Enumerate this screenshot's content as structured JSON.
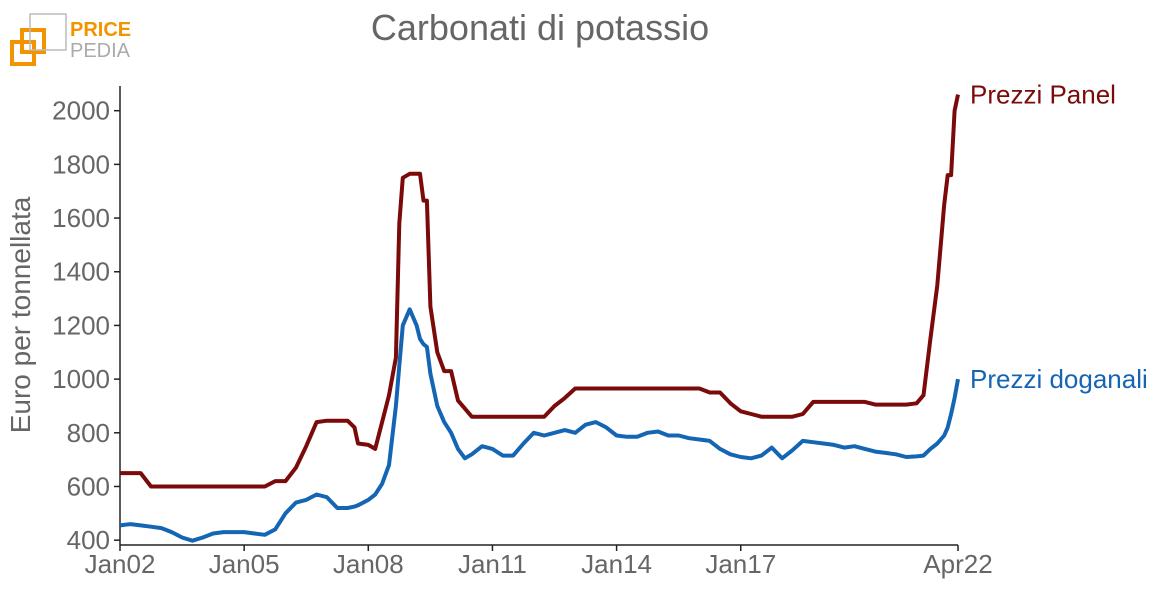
{
  "logo": {
    "line1": "PRICE",
    "line2": "PEDIA"
  },
  "chart_data": {
    "type": "line",
    "title": "Carbonati di potassio",
    "y_label": "Euro per tonnellata",
    "x": [
      "2002-01",
      "2002-04",
      "2002-07",
      "2002-10",
      "2003-01",
      "2003-04",
      "2003-07",
      "2003-10",
      "2004-01",
      "2004-04",
      "2004-07",
      "2004-10",
      "2005-01",
      "2005-04",
      "2005-07",
      "2005-10",
      "2006-01",
      "2006-04",
      "2006-07",
      "2006-10",
      "2007-01",
      "2007-04",
      "2007-07",
      "2007-09",
      "2007-10",
      "2008-01",
      "2008-03",
      "2008-05",
      "2008-07",
      "2008-09",
      "2008-10",
      "2008-11",
      "2009-01",
      "2009-03",
      "2009-04",
      "2009-05",
      "2009-06",
      "2009-07",
      "2009-09",
      "2009-11",
      "2010-01",
      "2010-03",
      "2010-05",
      "2010-07",
      "2010-10",
      "2011-01",
      "2011-04",
      "2011-07",
      "2011-10",
      "2012-01",
      "2012-04",
      "2012-07",
      "2012-10",
      "2013-01",
      "2013-04",
      "2013-07",
      "2013-10",
      "2014-01",
      "2014-04",
      "2014-07",
      "2014-10",
      "2015-01",
      "2015-04",
      "2015-07",
      "2015-10",
      "2016-01",
      "2016-04",
      "2016-07",
      "2016-10",
      "2017-01",
      "2017-04",
      "2017-07",
      "2017-10",
      "2018-01",
      "2018-04",
      "2018-07",
      "2018-10",
      "2019-01",
      "2019-04",
      "2019-07",
      "2019-10",
      "2020-01",
      "2020-04",
      "2020-07",
      "2020-10",
      "2021-01",
      "2021-04",
      "2021-06",
      "2021-08",
      "2021-10",
      "2021-12",
      "2022-01",
      "2022-02",
      "2022-03",
      "2022-04"
    ],
    "series": [
      {
        "name": "Prezzi Panel",
        "color": "#7b0a0a",
        "values": [
          650,
          650,
          650,
          600,
          600,
          600,
          600,
          600,
          600,
          600,
          600,
          600,
          600,
          600,
          600,
          620,
          620,
          670,
          750,
          840,
          845,
          845,
          845,
          820,
          760,
          755,
          740,
          840,
          940,
          1080,
          1580,
          1750,
          1765,
          1765,
          1765,
          1665,
          1665,
          1270,
          1100,
          1030,
          1030,
          920,
          890,
          860,
          860,
          860,
          860,
          860,
          860,
          860,
          860,
          900,
          930,
          965,
          965,
          965,
          965,
          965,
          965,
          965,
          965,
          965,
          965,
          965,
          965,
          965,
          950,
          950,
          910,
          880,
          870,
          860,
          860,
          860,
          860,
          870,
          915,
          915,
          915,
          915,
          915,
          915,
          905,
          905,
          905,
          905,
          910,
          940,
          1150,
          1350,
          1650,
          1760,
          1760,
          2000,
          2060
        ]
      },
      {
        "name": "Prezzi doganali",
        "color": "#1565b5",
        "values": [
          455,
          460,
          455,
          450,
          445,
          430,
          410,
          398,
          410,
          425,
          430,
          430,
          430,
          425,
          420,
          440,
          500,
          540,
          550,
          570,
          560,
          520,
          520,
          525,
          530,
          550,
          570,
          610,
          680,
          900,
          1050,
          1200,
          1260,
          1200,
          1150,
          1130,
          1120,
          1020,
          900,
          840,
          800,
          740,
          705,
          720,
          750,
          740,
          715,
          715,
          760,
          800,
          790,
          800,
          810,
          800,
          830,
          840,
          820,
          790,
          785,
          785,
          800,
          805,
          790,
          790,
          780,
          775,
          770,
          740,
          720,
          710,
          705,
          715,
          745,
          705,
          735,
          770,
          765,
          760,
          755,
          745,
          750,
          740,
          730,
          725,
          720,
          710,
          712,
          715,
          740,
          760,
          790,
          820,
          870,
          930,
          1000
        ]
      }
    ],
    "xlim": [
      "2002-01",
      "2022-04"
    ],
    "xticks": [
      {
        "value": "2002-01",
        "label": "Jan02"
      },
      {
        "value": "2005-01",
        "label": "Jan05"
      },
      {
        "value": "2008-01",
        "label": "Jan08"
      },
      {
        "value": "2011-01",
        "label": "Jan11"
      },
      {
        "value": "2014-01",
        "label": "Jan14"
      },
      {
        "value": "2017-01",
        "label": "Jan17"
      },
      {
        "value": "2022-04",
        "label": "Apr22"
      }
    ],
    "ylim": [
      382,
      2092
    ],
    "yticks": [
      400,
      600,
      800,
      1000,
      1200,
      1400,
      1600,
      1800,
      2000
    ]
  }
}
